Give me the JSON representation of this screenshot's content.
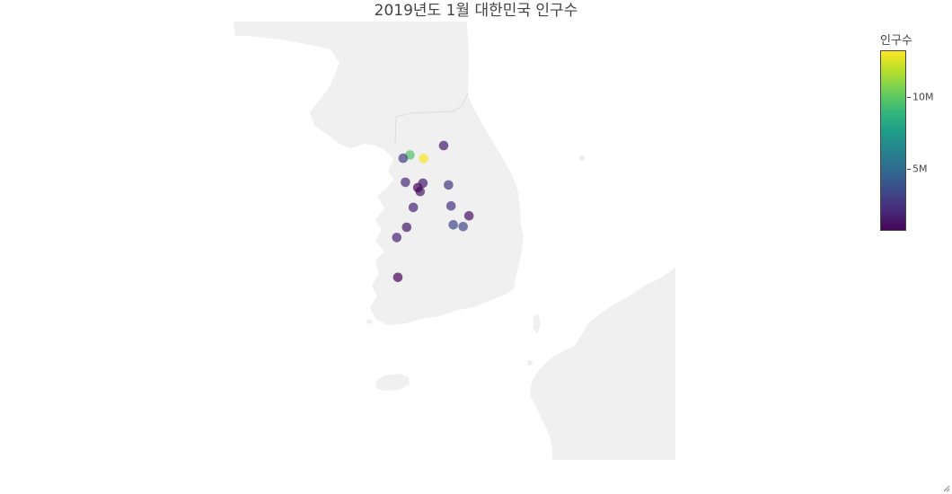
{
  "chart_data": {
    "type": "scatter",
    "title": "2019년도 1월 대한민국 인구수",
    "colorbar": {
      "title": "인구수",
      "colorscale": "Viridis",
      "range": [
        660000,
        13280000
      ],
      "ticks": [
        {
          "value": 5000000,
          "label": "5M"
        },
        {
          "value": 10000000,
          "label": "10M"
        }
      ]
    },
    "marker_opacity": 0.7,
    "points": [
      {
        "lon": 126.98,
        "lat": 37.57,
        "value": 9770000
      },
      {
        "lon": 129.08,
        "lat": 35.18,
        "value": 3440000
      },
      {
        "lon": 128.6,
        "lat": 35.87,
        "value": 2470000
      },
      {
        "lon": 126.71,
        "lat": 37.46,
        "value": 2950000
      },
      {
        "lon": 126.85,
        "lat": 35.16,
        "value": 1460000
      },
      {
        "lon": 127.38,
        "lat": 36.35,
        "value": 1490000
      },
      {
        "lon": 129.31,
        "lat": 35.54,
        "value": 1160000
      },
      {
        "lon": 127.29,
        "lat": 36.48,
        "value": 320000
      },
      {
        "lon": 127.52,
        "lat": 37.45,
        "value": 13100000
      },
      {
        "lon": 128.31,
        "lat": 37.88,
        "value": 1540000
      },
      {
        "lon": 127.49,
        "lat": 36.63,
        "value": 1600000
      },
      {
        "lon": 126.8,
        "lat": 36.66,
        "value": 2130000
      },
      {
        "lon": 127.11,
        "lat": 35.82,
        "value": 1830000
      },
      {
        "lon": 126.46,
        "lat": 34.82,
        "value": 1880000
      },
      {
        "lon": 128.5,
        "lat": 36.57,
        "value": 2670000
      },
      {
        "lon": 128.69,
        "lat": 35.24,
        "value": 3370000
      },
      {
        "lon": 126.5,
        "lat": 33.49,
        "value": 670000
      }
    ]
  }
}
